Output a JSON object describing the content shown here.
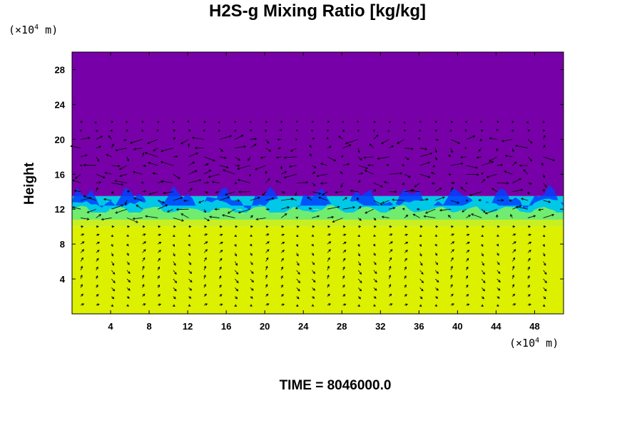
{
  "chart_data": {
    "type": "heatmap",
    "title": "H2S-g Mixing Ratio [kg/kg]",
    "ylabel": "Height",
    "x_unit": "(×10",
    "x_unit_exp": "4",
    "x_unit_tail": " m)",
    "y_unit": "(×10",
    "y_unit_exp": "4",
    "y_unit_tail": " m)",
    "xlim": [
      0,
      51
    ],
    "ylim": [
      0,
      30
    ],
    "x_ticks": [
      4,
      8,
      12,
      16,
      20,
      24,
      28,
      32,
      36,
      40,
      44,
      48
    ],
    "y_ticks": [
      4,
      8,
      12,
      16,
      20,
      24,
      28
    ],
    "bands": [
      {
        "from": 0,
        "to": 10,
        "color": "#dcf000"
      },
      {
        "from": 10,
        "to": 11,
        "color": "#c8f020"
      },
      {
        "from": 11,
        "to": 12,
        "color": "#90f060"
      },
      {
        "from": 12,
        "to": 13.5,
        "color": "#00c8e6"
      },
      {
        "from": 13.5,
        "to": 30,
        "color": "#7800a8"
      }
    ],
    "vector_field": true,
    "time_label": "TIME = 8046000.0"
  },
  "colors": {
    "top": "#7800a8",
    "bottom": "#dcf000",
    "transition_blue": "#0040ff",
    "transition_cyan": "#00c8e6"
  }
}
